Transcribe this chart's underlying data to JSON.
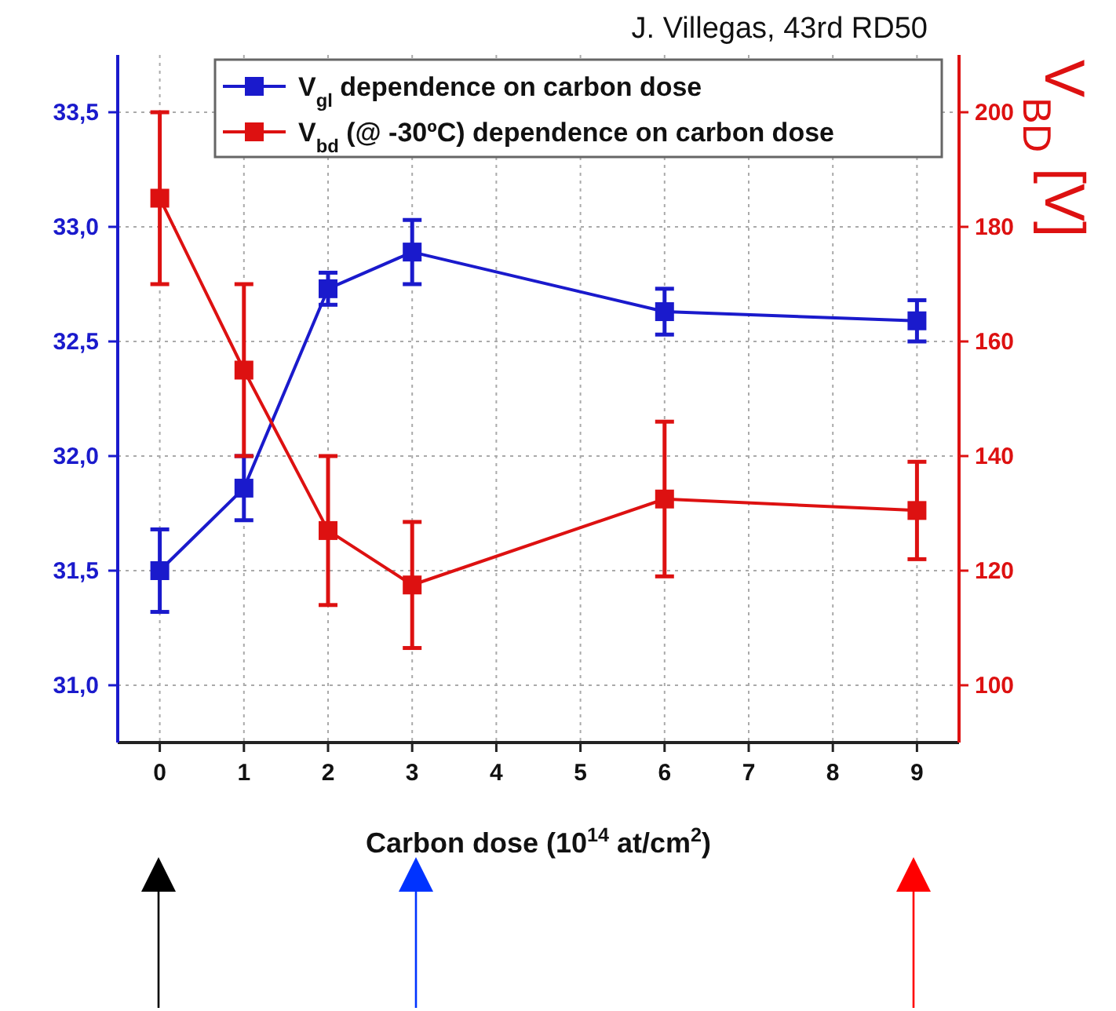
{
  "chart_data": {
    "type": "line",
    "annotations": [
      "J. Villegas, 43rd RD50"
    ],
    "xlabel": "Carbon dose (10$^{14}$ at/cm$^{2}$)",
    "y2label": "V$_{BD}$ [V]",
    "x": [
      0,
      1,
      2,
      3,
      6,
      9
    ],
    "series": [
      {
        "name": "V$_{gl}$ dependence on carbon dose",
        "color": "#1a1acc",
        "values": [
          31.5,
          31.86,
          32.73,
          32.89,
          32.63,
          32.59
        ],
        "errors": [
          0.18,
          0.14,
          0.07,
          0.14,
          0.1,
          0.09
        ]
      },
      {
        "name": "V$_{bd}$ (@ -30ºC) dependence on carbon dose",
        "color": "#dd1111",
        "axis": "y2",
        "values": [
          185,
          155,
          127,
          117.5,
          132.5,
          130.5
        ],
        "errors": [
          15,
          15,
          13,
          11,
          13.5,
          8.5
        ]
      }
    ],
    "xlim": [
      -0.5,
      9.5
    ],
    "xticks": [
      0,
      1,
      2,
      3,
      4,
      5,
      6,
      7,
      8,
      9
    ],
    "ylim": [
      30.75,
      33.75
    ],
    "yticks": [
      {
        "value": 31,
        "label": "31,0"
      },
      {
        "value": 31.5,
        "label": "31,5"
      },
      {
        "value": 32,
        "label": "32,0"
      },
      {
        "value": 32.5,
        "label": "32,5"
      },
      {
        "value": 33,
        "label": "33,0"
      },
      {
        "value": 33.5,
        "label": "33,5"
      }
    ],
    "y2lim": [
      90,
      210
    ],
    "y2ticks": [
      100,
      120,
      140,
      160,
      180,
      200
    ],
    "grid": true,
    "legend": "top",
    "marker": "square",
    "line_style": "solid"
  }
}
